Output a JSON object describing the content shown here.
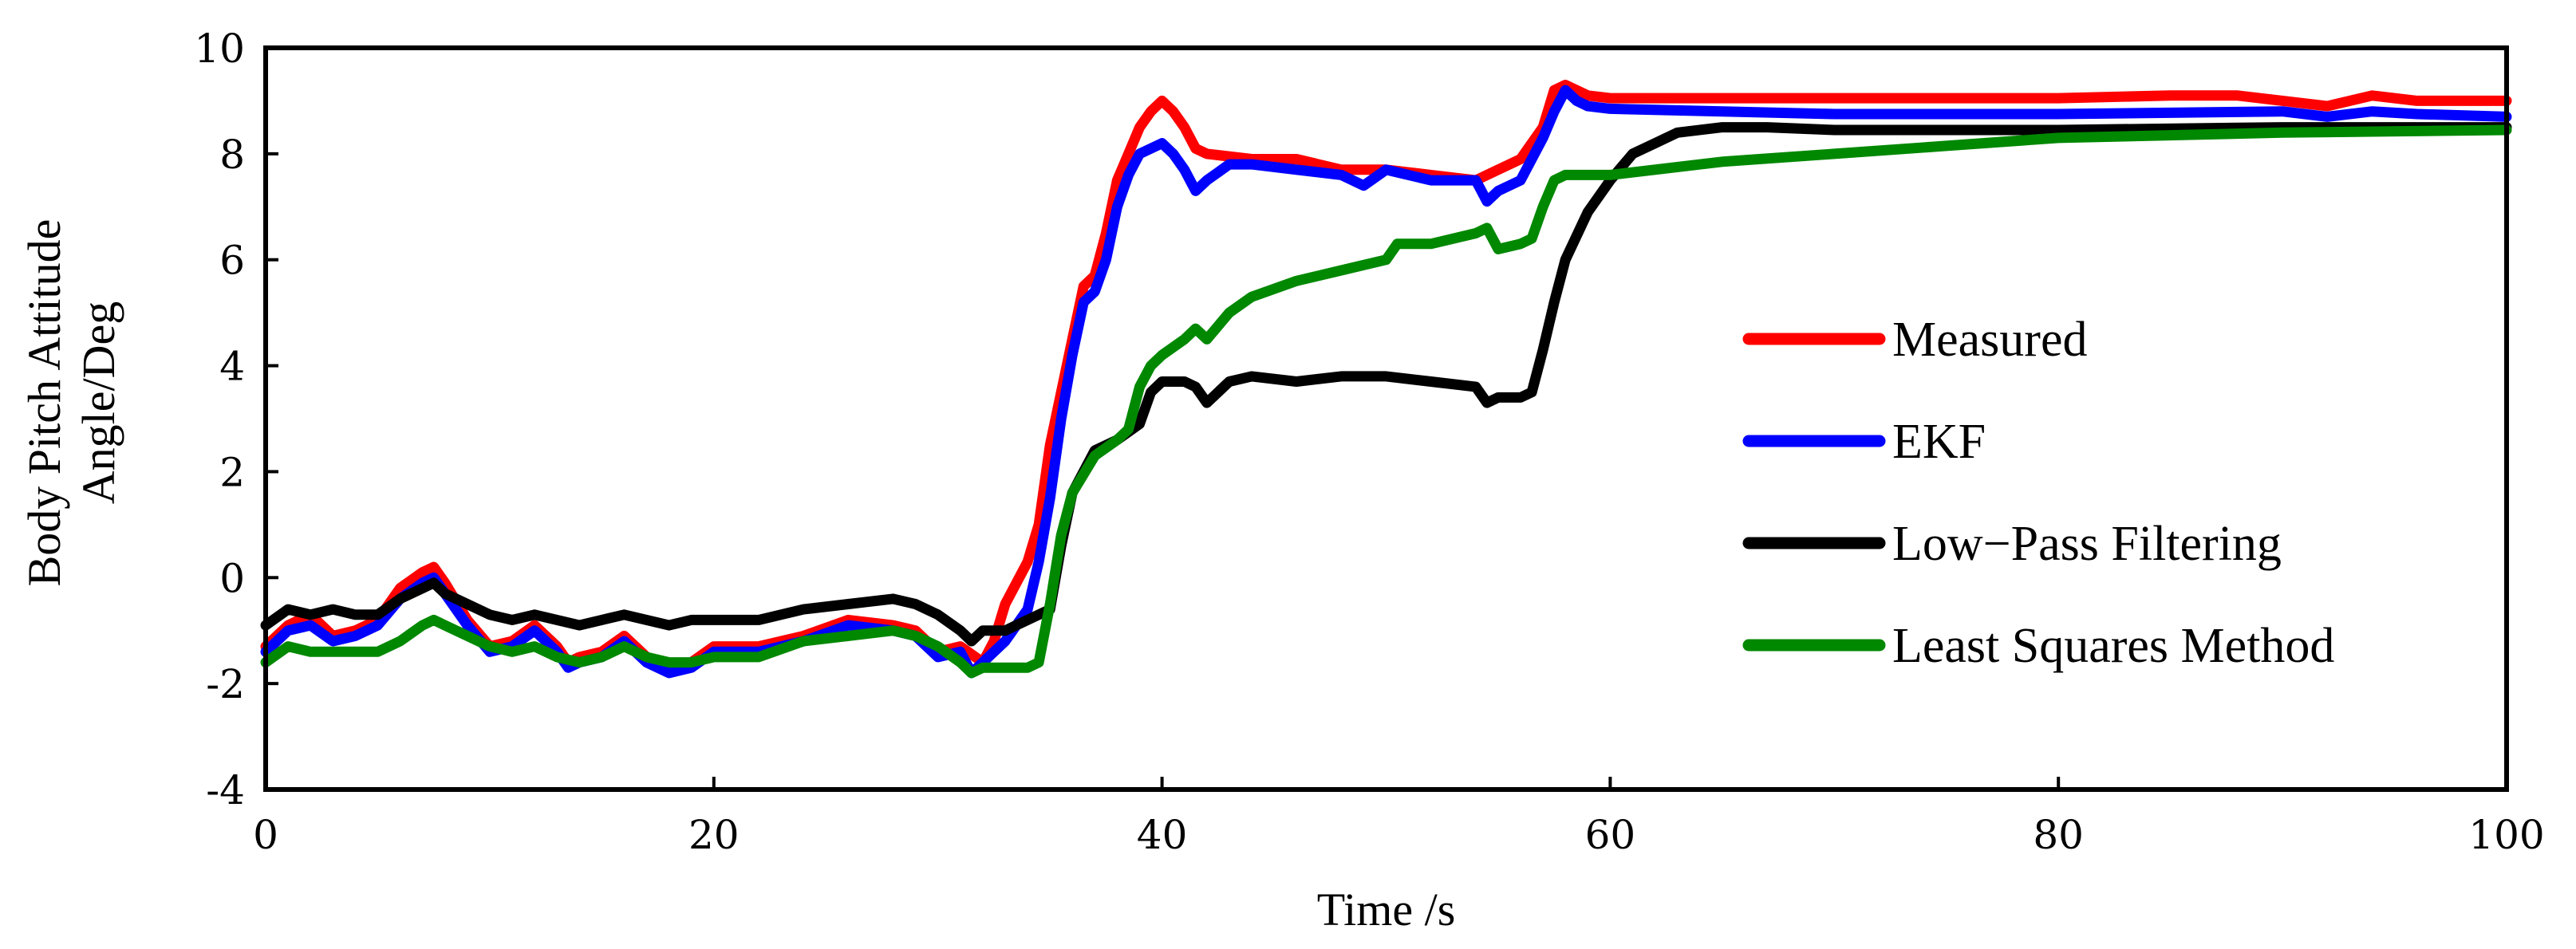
{
  "chart_data": {
    "type": "line",
    "title": "",
    "xlabel": "Time /s",
    "ylabel": [
      "Body Pitch Attitude",
      "Angle/Deg"
    ],
    "xlim": [
      0,
      100
    ],
    "ylim": [
      -4,
      10
    ],
    "xticks": [
      0,
      20,
      40,
      60,
      80,
      100
    ],
    "yticks": [
      -4,
      -2,
      0,
      2,
      4,
      6,
      8,
      10
    ],
    "grid": false,
    "legend_position": "right",
    "series": [
      {
        "name": "Measured",
        "color": "#ff0000",
        "points": [
          [
            0,
            -1.3
          ],
          [
            1,
            -0.9
          ],
          [
            2,
            -0.7
          ],
          [
            3,
            -1.1
          ],
          [
            4,
            -1.0
          ],
          [
            5,
            -0.8
          ],
          [
            6,
            -0.2
          ],
          [
            7,
            0.1
          ],
          [
            7.5,
            0.2
          ],
          [
            8,
            -0.1
          ],
          [
            9,
            -0.8
          ],
          [
            10,
            -1.3
          ],
          [
            11,
            -1.2
          ],
          [
            12,
            -0.9
          ],
          [
            13,
            -1.3
          ],
          [
            13.5,
            -1.6
          ],
          [
            14,
            -1.5
          ],
          [
            15,
            -1.4
          ],
          [
            16,
            -1.1
          ],
          [
            17,
            -1.5
          ],
          [
            18,
            -1.7
          ],
          [
            19,
            -1.6
          ],
          [
            20,
            -1.3
          ],
          [
            22,
            -1.3
          ],
          [
            24,
            -1.1
          ],
          [
            26,
            -0.8
          ],
          [
            28,
            -0.9
          ],
          [
            29,
            -1.0
          ],
          [
            30,
            -1.4
          ],
          [
            31,
            -1.3
          ],
          [
            32,
            -1.6
          ],
          [
            32.5,
            -1.2
          ],
          [
            33,
            -0.5
          ],
          [
            34,
            0.3
          ],
          [
            34.5,
            1.0
          ],
          [
            35,
            2.5
          ],
          [
            35.5,
            3.5
          ],
          [
            36,
            4.5
          ],
          [
            36.5,
            5.5
          ],
          [
            37,
            5.7
          ],
          [
            37.5,
            6.5
          ],
          [
            38,
            7.5
          ],
          [
            38.5,
            8.0
          ],
          [
            39,
            8.5
          ],
          [
            39.5,
            8.8
          ],
          [
            40,
            9.0
          ],
          [
            40.5,
            8.8
          ],
          [
            41,
            8.5
          ],
          [
            41.5,
            8.1
          ],
          [
            42,
            8.0
          ],
          [
            44,
            7.9
          ],
          [
            46,
            7.9
          ],
          [
            48,
            7.7
          ],
          [
            50,
            7.7
          ],
          [
            52,
            7.6
          ],
          [
            54,
            7.5
          ],
          [
            55,
            7.7
          ],
          [
            56,
            7.9
          ],
          [
            57,
            8.5
          ],
          [
            57.5,
            9.2
          ],
          [
            58,
            9.3
          ],
          [
            58.5,
            9.2
          ],
          [
            59,
            9.1
          ],
          [
            60,
            9.05
          ],
          [
            65,
            9.05
          ],
          [
            70,
            9.05
          ],
          [
            75,
            9.05
          ],
          [
            80,
            9.05
          ],
          [
            85,
            9.1
          ],
          [
            88,
            9.1
          ],
          [
            90,
            9.0
          ],
          [
            92,
            8.9
          ],
          [
            94,
            9.1
          ],
          [
            96,
            9.0
          ],
          [
            100,
            9.0
          ]
        ]
      },
      {
        "name": "EKF",
        "color": "#0000ff",
        "points": [
          [
            0,
            -1.4
          ],
          [
            1,
            -1.0
          ],
          [
            2,
            -0.9
          ],
          [
            3,
            -1.2
          ],
          [
            4,
            -1.1
          ],
          [
            5,
            -0.9
          ],
          [
            6,
            -0.4
          ],
          [
            7,
            -0.1
          ],
          [
            7.5,
            0.0
          ],
          [
            8,
            -0.3
          ],
          [
            9,
            -0.9
          ],
          [
            10,
            -1.4
          ],
          [
            11,
            -1.3
          ],
          [
            12,
            -1.0
          ],
          [
            13,
            -1.4
          ],
          [
            13.5,
            -1.7
          ],
          [
            14,
            -1.6
          ],
          [
            15,
            -1.5
          ],
          [
            16,
            -1.2
          ],
          [
            17,
            -1.6
          ],
          [
            18,
            -1.8
          ],
          [
            19,
            -1.7
          ],
          [
            20,
            -1.4
          ],
          [
            22,
            -1.4
          ],
          [
            24,
            -1.2
          ],
          [
            26,
            -0.9
          ],
          [
            28,
            -1.0
          ],
          [
            29,
            -1.1
          ],
          [
            30,
            -1.5
          ],
          [
            31,
            -1.4
          ],
          [
            31.5,
            -1.8
          ],
          [
            32,
            -1.6
          ],
          [
            33,
            -1.2
          ],
          [
            34,
            -0.6
          ],
          [
            34.5,
            0.3
          ],
          [
            35,
            1.5
          ],
          [
            35.5,
            3.0
          ],
          [
            36,
            4.2
          ],
          [
            36.5,
            5.2
          ],
          [
            37,
            5.4
          ],
          [
            37.5,
            6.0
          ],
          [
            38,
            7.0
          ],
          [
            38.5,
            7.6
          ],
          [
            39,
            8.0
          ],
          [
            40,
            8.2
          ],
          [
            40.5,
            8.0
          ],
          [
            41,
            7.7
          ],
          [
            41.5,
            7.3
          ],
          [
            42,
            7.5
          ],
          [
            43,
            7.8
          ],
          [
            44,
            7.8
          ],
          [
            46,
            7.7
          ],
          [
            48,
            7.6
          ],
          [
            49,
            7.4
          ],
          [
            50,
            7.7
          ],
          [
            52,
            7.5
          ],
          [
            54,
            7.5
          ],
          [
            54.5,
            7.1
          ],
          [
            55,
            7.3
          ],
          [
            56,
            7.5
          ],
          [
            57,
            8.3
          ],
          [
            57.5,
            8.8
          ],
          [
            58,
            9.2
          ],
          [
            58.5,
            9.0
          ],
          [
            59,
            8.9
          ],
          [
            60,
            8.85
          ],
          [
            65,
            8.8
          ],
          [
            70,
            8.75
          ],
          [
            80,
            8.75
          ],
          [
            90,
            8.8
          ],
          [
            92,
            8.7
          ],
          [
            94,
            8.8
          ],
          [
            96,
            8.75
          ],
          [
            100,
            8.7
          ]
        ]
      },
      {
        "name": "Low−Pass Filtering",
        "color": "#000000",
        "points": [
          [
            0,
            -0.9
          ],
          [
            1,
            -0.6
          ],
          [
            2,
            -0.7
          ],
          [
            3,
            -0.6
          ],
          [
            4,
            -0.7
          ],
          [
            5,
            -0.7
          ],
          [
            6,
            -0.4
          ],
          [
            7,
            -0.2
          ],
          [
            7.5,
            -0.1
          ],
          [
            8,
            -0.3
          ],
          [
            9,
            -0.5
          ],
          [
            10,
            -0.7
          ],
          [
            11,
            -0.8
          ],
          [
            12,
            -0.7
          ],
          [
            13,
            -0.8
          ],
          [
            14,
            -0.9
          ],
          [
            15,
            -0.8
          ],
          [
            16,
            -0.7
          ],
          [
            17,
            -0.8
          ],
          [
            18,
            -0.9
          ],
          [
            19,
            -0.8
          ],
          [
            20,
            -0.8
          ],
          [
            22,
            -0.8
          ],
          [
            24,
            -0.6
          ],
          [
            26,
            -0.5
          ],
          [
            28,
            -0.4
          ],
          [
            29,
            -0.5
          ],
          [
            30,
            -0.7
          ],
          [
            31,
            -1.0
          ],
          [
            31.5,
            -1.2
          ],
          [
            32,
            -1.0
          ],
          [
            33,
            -1.0
          ],
          [
            34,
            -0.8
          ],
          [
            35,
            -0.6
          ],
          [
            35.5,
            0.6
          ],
          [
            36,
            1.6
          ],
          [
            37,
            2.4
          ],
          [
            38,
            2.6
          ],
          [
            39,
            2.9
          ],
          [
            39.5,
            3.5
          ],
          [
            40,
            3.7
          ],
          [
            41,
            3.7
          ],
          [
            41.5,
            3.6
          ],
          [
            42,
            3.3
          ],
          [
            43,
            3.7
          ],
          [
            44,
            3.8
          ],
          [
            46,
            3.7
          ],
          [
            48,
            3.8
          ],
          [
            50,
            3.8
          ],
          [
            52,
            3.7
          ],
          [
            54,
            3.6
          ],
          [
            54.5,
            3.3
          ],
          [
            55,
            3.4
          ],
          [
            56,
            3.4
          ],
          [
            56.5,
            3.5
          ],
          [
            57,
            4.3
          ],
          [
            57.5,
            5.2
          ],
          [
            58,
            6.0
          ],
          [
            59,
            6.9
          ],
          [
            60,
            7.5
          ],
          [
            61,
            8.0
          ],
          [
            62,
            8.2
          ],
          [
            63,
            8.4
          ],
          [
            65,
            8.5
          ],
          [
            67,
            8.5
          ],
          [
            70,
            8.45
          ],
          [
            75,
            8.45
          ],
          [
            80,
            8.45
          ],
          [
            90,
            8.5
          ],
          [
            100,
            8.5
          ]
        ]
      },
      {
        "name": "Least Squares Method",
        "color": "#008800",
        "points": [
          [
            0,
            -1.6
          ],
          [
            1,
            -1.3
          ],
          [
            2,
            -1.4
          ],
          [
            3,
            -1.4
          ],
          [
            4,
            -1.4
          ],
          [
            5,
            -1.4
          ],
          [
            6,
            -1.2
          ],
          [
            7,
            -0.9
          ],
          [
            7.5,
            -0.8
          ],
          [
            8,
            -0.9
          ],
          [
            9,
            -1.1
          ],
          [
            10,
            -1.3
          ],
          [
            11,
            -1.4
          ],
          [
            12,
            -1.3
          ],
          [
            13,
            -1.5
          ],
          [
            14,
            -1.6
          ],
          [
            15,
            -1.5
          ],
          [
            16,
            -1.3
          ],
          [
            17,
            -1.5
          ],
          [
            18,
            -1.6
          ],
          [
            19,
            -1.6
          ],
          [
            20,
            -1.5
          ],
          [
            22,
            -1.5
          ],
          [
            24,
            -1.2
          ],
          [
            26,
            -1.1
          ],
          [
            28,
            -1.0
          ],
          [
            29,
            -1.1
          ],
          [
            30,
            -1.3
          ],
          [
            31,
            -1.6
          ],
          [
            31.5,
            -1.8
          ],
          [
            32,
            -1.7
          ],
          [
            34,
            -1.7
          ],
          [
            34.5,
            -1.6
          ],
          [
            35,
            -0.5
          ],
          [
            35.5,
            0.8
          ],
          [
            36,
            1.6
          ],
          [
            37,
            2.3
          ],
          [
            38,
            2.6
          ],
          [
            38.5,
            2.8
          ],
          [
            39,
            3.6
          ],
          [
            39.5,
            4.0
          ],
          [
            40,
            4.2
          ],
          [
            41,
            4.5
          ],
          [
            41.5,
            4.7
          ],
          [
            42,
            4.5
          ],
          [
            43,
            5.0
          ],
          [
            44,
            5.3
          ],
          [
            46,
            5.6
          ],
          [
            48,
            5.8
          ],
          [
            50,
            6.0
          ],
          [
            50.5,
            6.3
          ],
          [
            52,
            6.3
          ],
          [
            54,
            6.5
          ],
          [
            54.5,
            6.6
          ],
          [
            55,
            6.2
          ],
          [
            56,
            6.3
          ],
          [
            56.5,
            6.4
          ],
          [
            57,
            7.0
          ],
          [
            57.5,
            7.5
          ],
          [
            58,
            7.6
          ],
          [
            60,
            7.6
          ],
          [
            65,
            7.85
          ],
          [
            70,
            8.0
          ],
          [
            75,
            8.15
          ],
          [
            80,
            8.3
          ],
          [
            85,
            8.35
          ],
          [
            90,
            8.4
          ],
          [
            100,
            8.45
          ]
        ]
      }
    ]
  }
}
